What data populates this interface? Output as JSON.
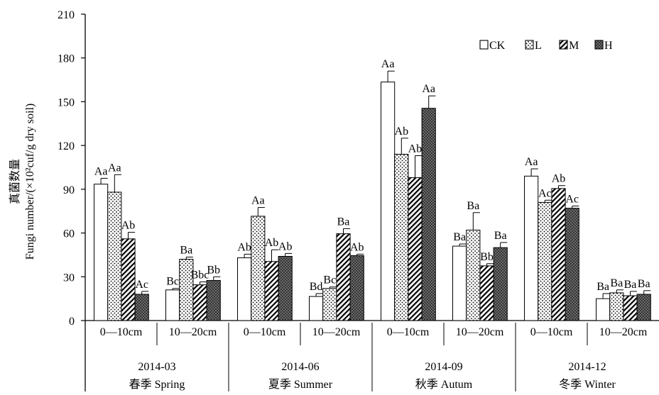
{
  "chart_data": {
    "type": "bar",
    "ylabel_cn": "真菌数量",
    "ylabel_en": "Fungi number/(×10²cuf/g dry soil)",
    "ylim": [
      0,
      210
    ],
    "yticks": [
      0,
      30,
      60,
      90,
      120,
      150,
      180,
      210
    ],
    "legend_position": "top-right",
    "series": [
      {
        "name": "CK",
        "pattern": "white"
      },
      {
        "name": "L",
        "pattern": "dots"
      },
      {
        "name": "M",
        "pattern": "diagonal"
      },
      {
        "name": "H",
        "pattern": "crosshatch"
      }
    ],
    "seasons": [
      {
        "date": "2014-03",
        "name": "春季 Spring"
      },
      {
        "date": "2014-06",
        "name": "夏季 Summer"
      },
      {
        "date": "2014-09",
        "name": "秋季 Autum"
      },
      {
        "date": "2014-12",
        "name": "冬季 Winter"
      }
    ],
    "groups": [
      {
        "depth": "0—10cm",
        "values": [
          93.5,
          88,
          56,
          18
        ],
        "errors": [
          4,
          12,
          4.5,
          2
        ],
        "labels": [
          "Aa",
          "Aa",
          "Ab",
          "Ac"
        ]
      },
      {
        "depth": "10—20cm",
        "values": [
          21,
          42,
          24.5,
          27.5
        ],
        "errors": [
          1,
          1.5,
          2,
          2.5
        ],
        "labels": [
          "Bc",
          "Ba",
          "Bbc",
          "Bb"
        ]
      },
      {
        "depth": "0—10cm",
        "values": [
          43,
          71.5,
          40.5,
          44
        ],
        "errors": [
          2.5,
          6,
          8,
          2
        ],
        "labels": [
          "Ab",
          "Aa",
          "Ab",
          "Ab"
        ]
      },
      {
        "depth": "10—20cm",
        "values": [
          16.5,
          22,
          59.5,
          44.5
        ],
        "errors": [
          2,
          1,
          3.5,
          1
        ],
        "labels": [
          "Bd",
          "Bc",
          "Ba",
          "Ab"
        ]
      },
      {
        "depth": "0—10cm",
        "values": [
          163.5,
          114,
          98,
          145.5
        ],
        "errors": [
          7.5,
          11,
          15,
          8.5
        ],
        "labels": [
          "Aa",
          "Ab",
          "Ab",
          "Aa"
        ]
      },
      {
        "depth": "10—20cm",
        "values": [
          51,
          62,
          37.5,
          50
        ],
        "errors": [
          1.5,
          12,
          1.5,
          3.5
        ],
        "labels": [
          "Ba",
          "Ba",
          "Bb",
          "Ba"
        ]
      },
      {
        "depth": "0—10cm",
        "values": [
          99,
          81,
          90.5,
          77
        ],
        "errors": [
          5,
          1.5,
          2,
          1.5
        ],
        "labels": [
          "Aa",
          "Ac",
          "Ab",
          "Ac"
        ]
      },
      {
        "depth": "10—20cm",
        "values": [
          15,
          19,
          17,
          18
        ],
        "errors": [
          3.5,
          2,
          3,
          2.5
        ],
        "labels": [
          "Ba",
          "Ba",
          "Ba",
          "Ba"
        ]
      }
    ]
  }
}
